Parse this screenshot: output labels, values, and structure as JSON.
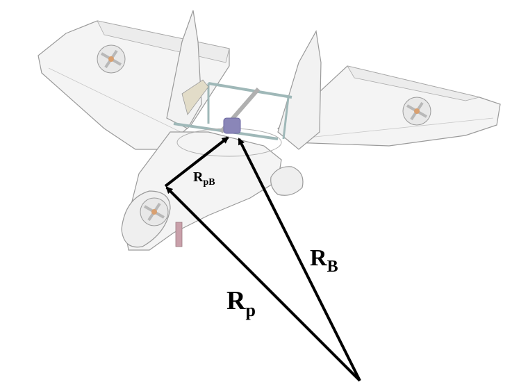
{
  "labels": {
    "r_p": {
      "main": "R",
      "sub": "p"
    },
    "r_b": {
      "main": "R",
      "sub": "B"
    },
    "r_pb": {
      "main": "R",
      "sub": "pB"
    }
  },
  "colors": {
    "vector": "#000000",
    "airframe_fill": "#f4f4f4",
    "airframe_stroke": "#9a9a9a",
    "rod": "#9fb8b8",
    "motor": "#8a86b8",
    "prop": "#b8b8b8",
    "leg": "#c9a0aa",
    "hub": "#d9a070"
  },
  "icons": {
    "rotor": "rotor-icon",
    "propeller": "propeller-icon"
  }
}
